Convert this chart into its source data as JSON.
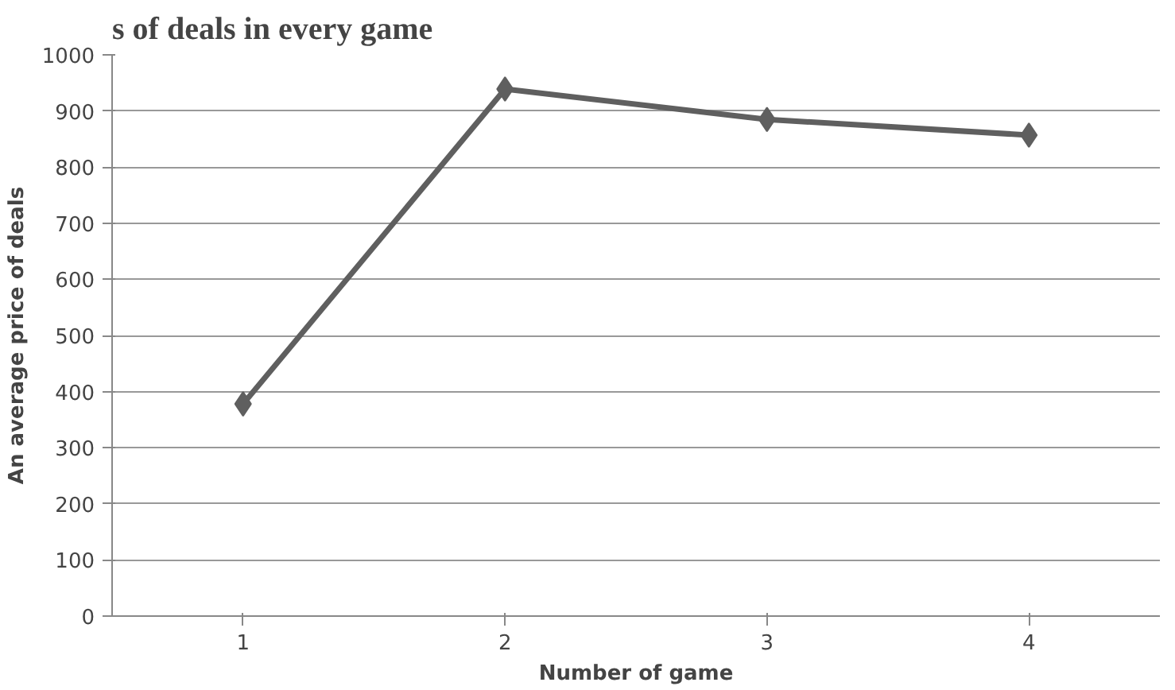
{
  "chart_data": {
    "type": "line",
    "title": "s of deals in every game",
    "xlabel": "Number of game",
    "ylabel": "An average price of deals",
    "categories": [
      "1",
      "2",
      "3",
      "4"
    ],
    "series": [
      {
        "color": "#5f5f5f",
        "values": [
          378,
          939,
          885,
          857
        ]
      }
    ],
    "ylim": [
      0,
      1000
    ],
    "yticks": [
      0,
      100,
      200,
      300,
      400,
      500,
      600,
      700,
      800,
      900,
      1000
    ],
    "grid": "y",
    "marker": "diamond"
  }
}
